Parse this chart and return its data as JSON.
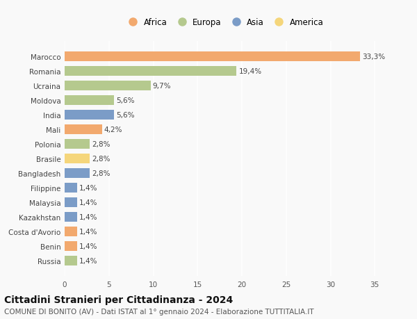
{
  "countries": [
    "Russia",
    "Benin",
    "Costa d'Avorio",
    "Kazakhstan",
    "Malaysia",
    "Filippine",
    "Bangladesh",
    "Brasile",
    "Polonia",
    "Mali",
    "India",
    "Moldova",
    "Ucraina",
    "Romania",
    "Marocco"
  ],
  "values": [
    1.4,
    1.4,
    1.4,
    1.4,
    1.4,
    1.4,
    2.8,
    2.8,
    2.8,
    4.2,
    5.6,
    5.6,
    9.7,
    19.4,
    33.3
  ],
  "labels": [
    "1,4%",
    "1,4%",
    "1,4%",
    "1,4%",
    "1,4%",
    "1,4%",
    "2,8%",
    "2,8%",
    "2,8%",
    "4,2%",
    "5,6%",
    "5,6%",
    "9,7%",
    "19,4%",
    "33,3%"
  ],
  "continents": [
    "Europa",
    "Africa",
    "Africa",
    "Asia",
    "Asia",
    "Asia",
    "Asia",
    "America",
    "Europa",
    "Africa",
    "Asia",
    "Europa",
    "Europa",
    "Europa",
    "Africa"
  ],
  "colors": {
    "Africa": "#F2A96E",
    "Europa": "#B5C98E",
    "Asia": "#7B9CC7",
    "America": "#F5D67B"
  },
  "legend_order": [
    "Africa",
    "Europa",
    "Asia",
    "America"
  ],
  "legend_colors": [
    "#F2A96E",
    "#B5C98E",
    "#7B9CC7",
    "#F5D67B"
  ],
  "xlim": [
    0,
    36
  ],
  "xticks": [
    0,
    5,
    10,
    15,
    20,
    25,
    30,
    35
  ],
  "title": "Cittadini Stranieri per Cittadinanza - 2024",
  "subtitle": "COMUNE DI BONITO (AV) - Dati ISTAT al 1° gennaio 2024 - Elaborazione TUTTITALIA.IT",
  "bg_color": "#f9f9f9",
  "bar_height": 0.65,
  "grid_color": "#ffffff",
  "label_fontsize": 7.5,
  "ytick_fontsize": 7.5,
  "xtick_fontsize": 7.5,
  "title_fontsize": 10,
  "subtitle_fontsize": 7.5,
  "legend_fontsize": 8.5
}
